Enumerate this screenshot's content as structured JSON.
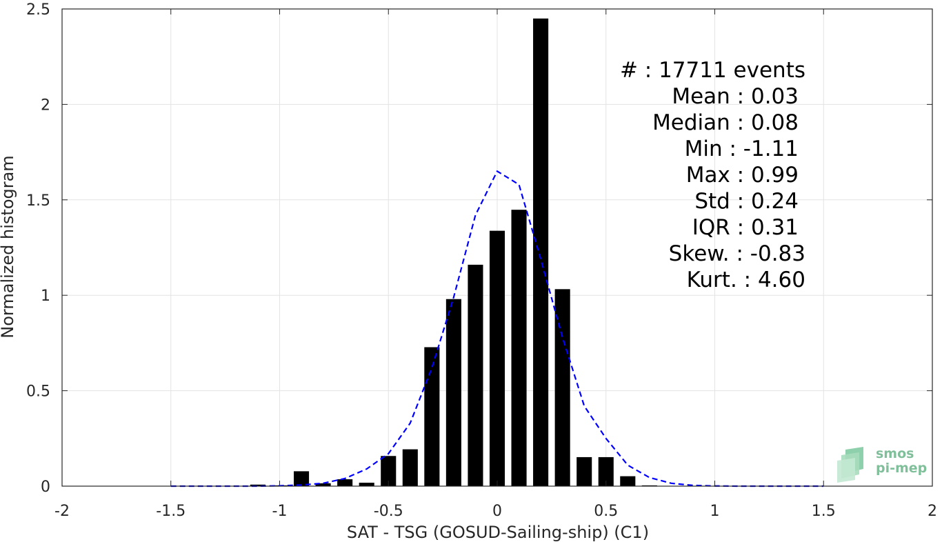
{
  "chart_data": {
    "type": "bar",
    "xlabel": "SAT - TSG (GOSUD-Sailing-ship) (C1)",
    "ylabel": "Normalized histogram",
    "xlim": [
      -2,
      2
    ],
    "ylim": [
      0,
      2.5
    ],
    "xticks": [
      -2,
      -1.5,
      -1,
      -0.5,
      0,
      0.5,
      1,
      1.5,
      2
    ],
    "xtick_labels": [
      "-2",
      "-1.5",
      "-1",
      "-0.5",
      "0",
      "0.5",
      "1",
      "1.5",
      "2"
    ],
    "yticks": [
      0,
      0.5,
      1,
      1.5,
      2,
      2.5
    ],
    "ytick_labels": [
      "0",
      "0.5",
      "1",
      "1.5",
      "2",
      "2.5"
    ],
    "grid": true,
    "bar_width": 0.07,
    "bars": {
      "x": [
        -1.1,
        -1.0,
        -0.9,
        -0.8,
        -0.7,
        -0.6,
        -0.5,
        -0.4,
        -0.3,
        -0.2,
        -0.1,
        0.0,
        0.1,
        0.2,
        0.3,
        0.4,
        0.5,
        0.6,
        0.7,
        0.8
      ],
      "values": [
        0.008,
        0.004,
        0.078,
        0.015,
        0.036,
        0.018,
        0.158,
        0.193,
        0.728,
        0.98,
        1.16,
        1.338,
        1.448,
        2.45,
        1.032,
        0.152,
        0.152,
        0.052,
        0.004,
        0.001
      ],
      "color": "#000000"
    },
    "fit_curve": {
      "style": "dashed",
      "color": "#0000ff",
      "x": [
        -1.5,
        -1.4,
        -1.3,
        -1.2,
        -1.1,
        -1.0,
        -0.9,
        -0.8,
        -0.7,
        -0.6,
        -0.5,
        -0.4,
        -0.3,
        -0.2,
        -0.1,
        0.0,
        0.1,
        0.2,
        0.3,
        0.4,
        0.5,
        0.6,
        0.7,
        0.8,
        0.9,
        1.0,
        1.1,
        1.2,
        1.3,
        1.4,
        1.5
      ],
      "y": [
        0.0,
        0.0,
        0.0,
        0.0,
        0.0,
        0.002,
        0.006,
        0.015,
        0.04,
        0.09,
        0.17,
        0.33,
        0.62,
        0.99,
        1.42,
        1.65,
        1.58,
        1.19,
        0.78,
        0.42,
        0.25,
        0.11,
        0.045,
        0.015,
        0.004,
        0.001,
        0.0,
        0.0,
        0.0,
        0.0,
        0.0
      ]
    },
    "stats": [
      "#  : 17711 events",
      "Mean : 0.03",
      "Median : 0.08",
      "Min : -1.11",
      "Max : 0.99",
      "Std : 0.24",
      "IQR : 0.31",
      "Skew. : -0.83",
      "Kurt. : 4.60"
    ]
  },
  "logo": {
    "line1": "smos",
    "line2": "pi-mep",
    "color": "#7fbf99"
  }
}
